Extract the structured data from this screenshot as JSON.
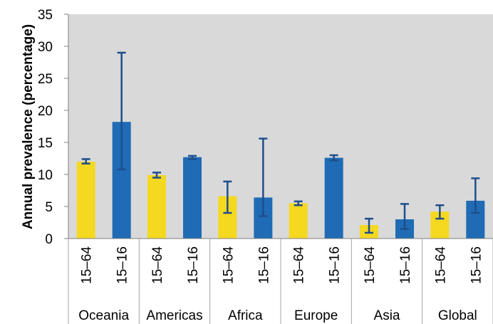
{
  "chart_data": {
    "type": "bar",
    "title": "",
    "ylabel": "Annual prevalence (percentage)",
    "xlabel": "",
    "ylim": [
      0,
      35
    ],
    "yticks": [
      0,
      5,
      10,
      15,
      20,
      25,
      30,
      35
    ],
    "grid": false,
    "legend": "none",
    "colors": {
      "15–64": "#F5D820",
      "15–16": "#1F6BB5",
      "error_bar": "#1F4E8C",
      "plot_bg": "#D9D9D9"
    },
    "groups": [
      "Oceania",
      "Americas",
      "Africa",
      "Europe",
      "Asia",
      "Global"
    ],
    "categories": [
      "15–64",
      "15–16"
    ],
    "bars": [
      {
        "group": "Oceania",
        "age": "15–64",
        "value": 12.0,
        "low": 11.7,
        "high": 12.4
      },
      {
        "group": "Oceania",
        "age": "15–16",
        "value": 18.2,
        "low": 10.8,
        "high": 29.0
      },
      {
        "group": "Americas",
        "age": "15–64",
        "value": 9.9,
        "low": 9.5,
        "high": 10.3
      },
      {
        "group": "Americas",
        "age": "15–16",
        "value": 12.7,
        "low": 12.4,
        "high": 12.9
      },
      {
        "group": "Africa",
        "age": "15–64",
        "value": 6.6,
        "low": 4.0,
        "high": 8.9
      },
      {
        "group": "Africa",
        "age": "15–16",
        "value": 6.4,
        "low": 3.5,
        "high": 15.6
      },
      {
        "group": "Europe",
        "age": "15–64",
        "value": 5.5,
        "low": 5.2,
        "high": 5.8
      },
      {
        "group": "Europe",
        "age": "15–16",
        "value": 12.6,
        "low": 12.2,
        "high": 13.0
      },
      {
        "group": "Asia",
        "age": "15–64",
        "value": 2.1,
        "low": 0.9,
        "high": 3.1
      },
      {
        "group": "Asia",
        "age": "15–16",
        "value": 3.0,
        "low": 1.5,
        "high": 5.4
      },
      {
        "group": "Global",
        "age": "15–64",
        "value": 4.2,
        "low": 3.1,
        "high": 5.2
      },
      {
        "group": "Global",
        "age": "15–16",
        "value": 5.9,
        "low": 4.0,
        "high": 9.4
      }
    ]
  }
}
